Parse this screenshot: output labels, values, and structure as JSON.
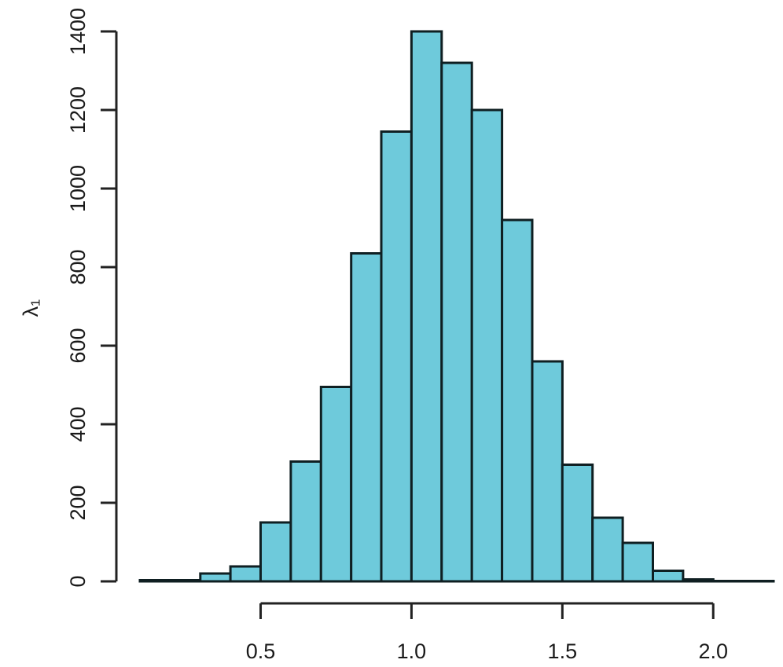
{
  "chart_data": {
    "type": "bar",
    "subtype": "histogram",
    "ylabel": "λ₁",
    "xlabel": "",
    "title": "",
    "bar_color": "#6ecadb",
    "edge_color": "#0f1f22",
    "bin_width": 0.1,
    "bin_start": 0.1,
    "xlim": [
      0.1,
      2.2
    ],
    "ylim": [
      0,
      1400
    ],
    "x_ticks": [
      "0.5",
      "1.0",
      "1.5",
      "2.0"
    ],
    "y_ticks": [
      "0",
      "200",
      "400",
      "600",
      "800",
      "1000",
      "1200",
      "1400"
    ],
    "values": [
      3,
      3,
      20,
      38,
      150,
      305,
      495,
      835,
      1145,
      1400,
      1320,
      1200,
      920,
      560,
      297,
      162,
      98,
      27,
      5,
      1,
      1
    ],
    "grid": false,
    "legend": "none"
  }
}
